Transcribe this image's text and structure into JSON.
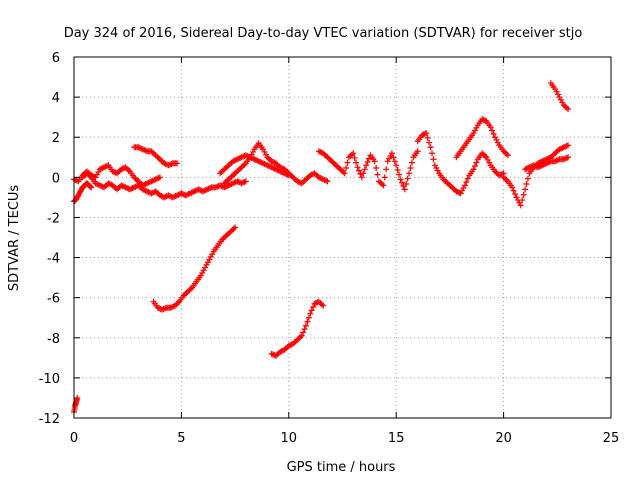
{
  "chart_data": {
    "type": "scatter",
    "title": "Day 324 of 2016, Sidereal Day-to-day VTEC variation (SDTVAR) for receiver stjo",
    "xlabel": "GPS time / hours",
    "ylabel": "SDTVAR / TECUs",
    "xlim": [
      0,
      25
    ],
    "ylim": [
      -12,
      6
    ],
    "x_ticks": [
      "0",
      "5",
      "10",
      "15",
      "20",
      "25"
    ],
    "y_ticks": [
      "-12",
      "-10",
      "-8",
      "-6",
      "-4",
      "-2",
      "0",
      "2",
      "4",
      "6"
    ],
    "grid": true,
    "marker": "plus",
    "series": [
      {
        "name": "seg1",
        "color": "#ff0000",
        "x": [
          0.0,
          0.1,
          0.2,
          0.3,
          0.4,
          0.5,
          0.6,
          0.7,
          0.8
        ],
        "y": [
          -1.2,
          -1.1,
          -0.9,
          -0.7,
          -0.5,
          -0.4,
          -0.3,
          -0.4,
          -0.5
        ]
      },
      {
        "name": "seg2",
        "color": "#ff0000",
        "x": [
          0.0,
          0.2,
          0.4,
          0.6,
          0.8,
          1.0,
          1.2,
          1.4,
          1.6,
          1.8,
          2.0,
          2.2,
          2.4,
          2.6,
          2.8,
          3.0,
          3.2,
          3.4,
          3.6,
          3.8,
          4.0
        ],
        "y": [
          -0.1,
          -0.2,
          0.1,
          0.3,
          0.1,
          0.0,
          0.4,
          0.5,
          0.6,
          0.3,
          0.2,
          0.4,
          0.5,
          0.3,
          0.0,
          -0.2,
          -0.4,
          -0.3,
          -0.2,
          -0.1,
          0.0
        ]
      },
      {
        "name": "seg3",
        "color": "#ff0000",
        "x": [
          0.4,
          0.6,
          0.8,
          1.0,
          1.2,
          1.4,
          1.6,
          1.8,
          2.0,
          2.2,
          2.4,
          2.6,
          2.8,
          3.0,
          3.2,
          3.4,
          3.6,
          3.8,
          4.0,
          4.2,
          4.4,
          4.6,
          4.8,
          5.0,
          5.2,
          5.4,
          5.6,
          5.8,
          6.0,
          6.2,
          6.4,
          6.6,
          6.8,
          7.0,
          7.2,
          7.4,
          7.6,
          7.8,
          8.0
        ],
        "y": [
          0.0,
          0.2,
          0.0,
          -0.3,
          -0.4,
          -0.5,
          -0.3,
          -0.4,
          -0.6,
          -0.4,
          -0.5,
          -0.6,
          -0.5,
          -0.4,
          -0.6,
          -0.7,
          -0.8,
          -0.7,
          -0.9,
          -1.0,
          -0.9,
          -1.0,
          -0.9,
          -0.8,
          -0.9,
          -0.8,
          -0.7,
          -0.6,
          -0.7,
          -0.6,
          -0.5,
          -0.5,
          -0.4,
          -0.5,
          -0.4,
          -0.3,
          -0.2,
          -0.3,
          -0.2
        ]
      },
      {
        "name": "seg4",
        "color": "#ff0000",
        "x": [
          2.8,
          3.0,
          3.2,
          3.4,
          3.6,
          3.8,
          4.0,
          4.2,
          4.4,
          4.6,
          4.8
        ],
        "y": [
          1.5,
          1.5,
          1.4,
          1.3,
          1.3,
          1.1,
          0.9,
          0.7,
          0.6,
          0.7,
          0.7
        ]
      },
      {
        "name": "seg5",
        "color": "#ff0000",
        "x": [
          7.0,
          7.2,
          7.4,
          7.6,
          7.8,
          8.0,
          8.2,
          8.4,
          8.6,
          8.8,
          9.0,
          9.2,
          9.4,
          9.6,
          9.8,
          10.0,
          10.2,
          10.4,
          10.6,
          10.8,
          11.0,
          11.2,
          11.4,
          11.6,
          11.8
        ],
        "y": [
          -0.3,
          -0.1,
          0.1,
          0.3,
          0.5,
          0.7,
          1.0,
          1.4,
          1.7,
          1.4,
          1.0,
          0.8,
          0.7,
          0.5,
          0.4,
          0.2,
          0.0,
          -0.2,
          -0.3,
          -0.1,
          0.1,
          0.2,
          0.0,
          -0.1,
          -0.2
        ]
      },
      {
        "name": "seg6",
        "color": "#ff0000",
        "x": [
          6.8,
          7.0,
          7.2,
          7.4,
          7.6,
          7.8,
          8.0,
          8.2,
          8.4,
          8.6,
          8.8,
          9.0,
          9.2,
          9.4,
          9.6,
          9.8,
          10.0
        ],
        "y": [
          0.2,
          0.4,
          0.6,
          0.8,
          0.9,
          1.0,
          1.1,
          1.0,
          0.9,
          0.8,
          0.7,
          0.6,
          0.5,
          0.4,
          0.3,
          0.2,
          0.1
        ]
      },
      {
        "name": "seg7",
        "color": "#ff0000",
        "x": [
          11.4,
          11.6,
          11.8,
          12.0,
          12.2,
          12.4,
          12.6,
          12.8,
          13.0,
          13.2,
          13.4,
          13.6,
          13.8,
          14.0,
          14.2,
          14.4,
          14.6,
          14.8,
          15.0,
          15.2,
          15.4,
          15.6,
          15.8,
          16.0
        ],
        "y": [
          1.3,
          1.2,
          1.0,
          0.8,
          0.6,
          0.4,
          0.2,
          1.0,
          1.2,
          0.5,
          0.0,
          0.6,
          1.1,
          0.8,
          -0.2,
          -0.4,
          0.8,
          1.2,
          0.6,
          -0.1,
          -0.6,
          0.2,
          1.0,
          1.3
        ]
      },
      {
        "name": "seg8",
        "color": "#ff0000",
        "x": [
          16.0,
          16.2,
          16.4,
          16.6,
          16.8,
          17.0,
          17.2,
          17.4,
          17.6,
          17.8,
          18.0,
          18.2,
          18.4,
          18.6,
          18.8,
          19.0,
          19.2,
          19.4,
          19.6,
          19.8,
          20.0
        ],
        "y": [
          1.8,
          2.1,
          2.2,
          1.5,
          0.6,
          0.2,
          -0.1,
          -0.3,
          -0.5,
          -0.7,
          -0.8,
          -0.4,
          0.1,
          0.4,
          0.9,
          1.2,
          1.0,
          0.6,
          0.3,
          0.1,
          0.2
        ]
      },
      {
        "name": "seg9",
        "color": "#ff0000",
        "x": [
          17.8,
          18.0,
          18.2,
          18.4,
          18.6,
          18.8,
          19.0,
          19.2,
          19.4,
          19.6,
          19.8,
          20.0,
          20.2
        ],
        "y": [
          1.0,
          1.3,
          1.6,
          1.9,
          2.2,
          2.6,
          2.9,
          2.8,
          2.5,
          2.0,
          1.6,
          1.3,
          1.1
        ]
      },
      {
        "name": "seg10",
        "color": "#ff0000",
        "x": [
          20.0,
          20.2,
          20.4,
          20.6,
          20.8,
          21.0,
          21.2,
          21.4,
          21.6,
          21.8,
          22.0,
          22.2,
          22.4,
          22.6,
          22.8,
          23.0
        ],
        "y": [
          0.0,
          -0.2,
          -0.5,
          -1.0,
          -1.4,
          -0.6,
          0.2,
          0.5,
          0.7,
          0.8,
          0.9,
          1.0,
          1.2,
          1.4,
          1.5,
          1.6
        ]
      },
      {
        "name": "seg11",
        "color": "#ff0000",
        "x": [
          21.0,
          21.2,
          21.4,
          21.6,
          21.8,
          22.0,
          22.2,
          22.4,
          22.6,
          22.8,
          23.0
        ],
        "y": [
          0.4,
          0.5,
          0.6,
          0.5,
          0.6,
          0.7,
          0.8,
          0.8,
          0.9,
          0.9,
          1.0
        ]
      },
      {
        "name": "seg12",
        "color": "#ff0000",
        "x": [
          22.2,
          22.4,
          22.6,
          22.8,
          23.0
        ],
        "y": [
          4.7,
          4.4,
          4.0,
          3.6,
          3.4
        ]
      },
      {
        "name": "seg13",
        "color": "#ff0000",
        "x": [
          3.7,
          3.9,
          4.1,
          4.3,
          4.5,
          4.7,
          4.9,
          5.1,
          5.3,
          5.5,
          5.7,
          5.9,
          6.1,
          6.3,
          6.5,
          6.7,
          6.9,
          7.1,
          7.3,
          7.5
        ],
        "y": [
          -6.2,
          -6.5,
          -6.6,
          -6.5,
          -6.5,
          -6.4,
          -6.2,
          -5.9,
          -5.7,
          -5.5,
          -5.2,
          -4.9,
          -4.5,
          -4.1,
          -3.7,
          -3.4,
          -3.1,
          -2.9,
          -2.7,
          -2.5
        ]
      },
      {
        "name": "seg14",
        "color": "#ff0000",
        "x": [
          9.2,
          9.4,
          9.6,
          9.8,
          10.0,
          10.2,
          10.4,
          10.6,
          10.8,
          11.0,
          11.2,
          11.4,
          11.6
        ],
        "y": [
          -8.8,
          -8.9,
          -8.7,
          -8.6,
          -8.4,
          -8.3,
          -8.1,
          -7.9,
          -7.4,
          -6.8,
          -6.3,
          -6.2,
          -6.4
        ]
      },
      {
        "name": "seg15",
        "color": "#ff0000",
        "x": [
          0.0,
          0.05,
          0.1,
          0.15
        ],
        "y": [
          -11.7,
          -11.4,
          -11.2,
          -11.0
        ]
      }
    ]
  }
}
